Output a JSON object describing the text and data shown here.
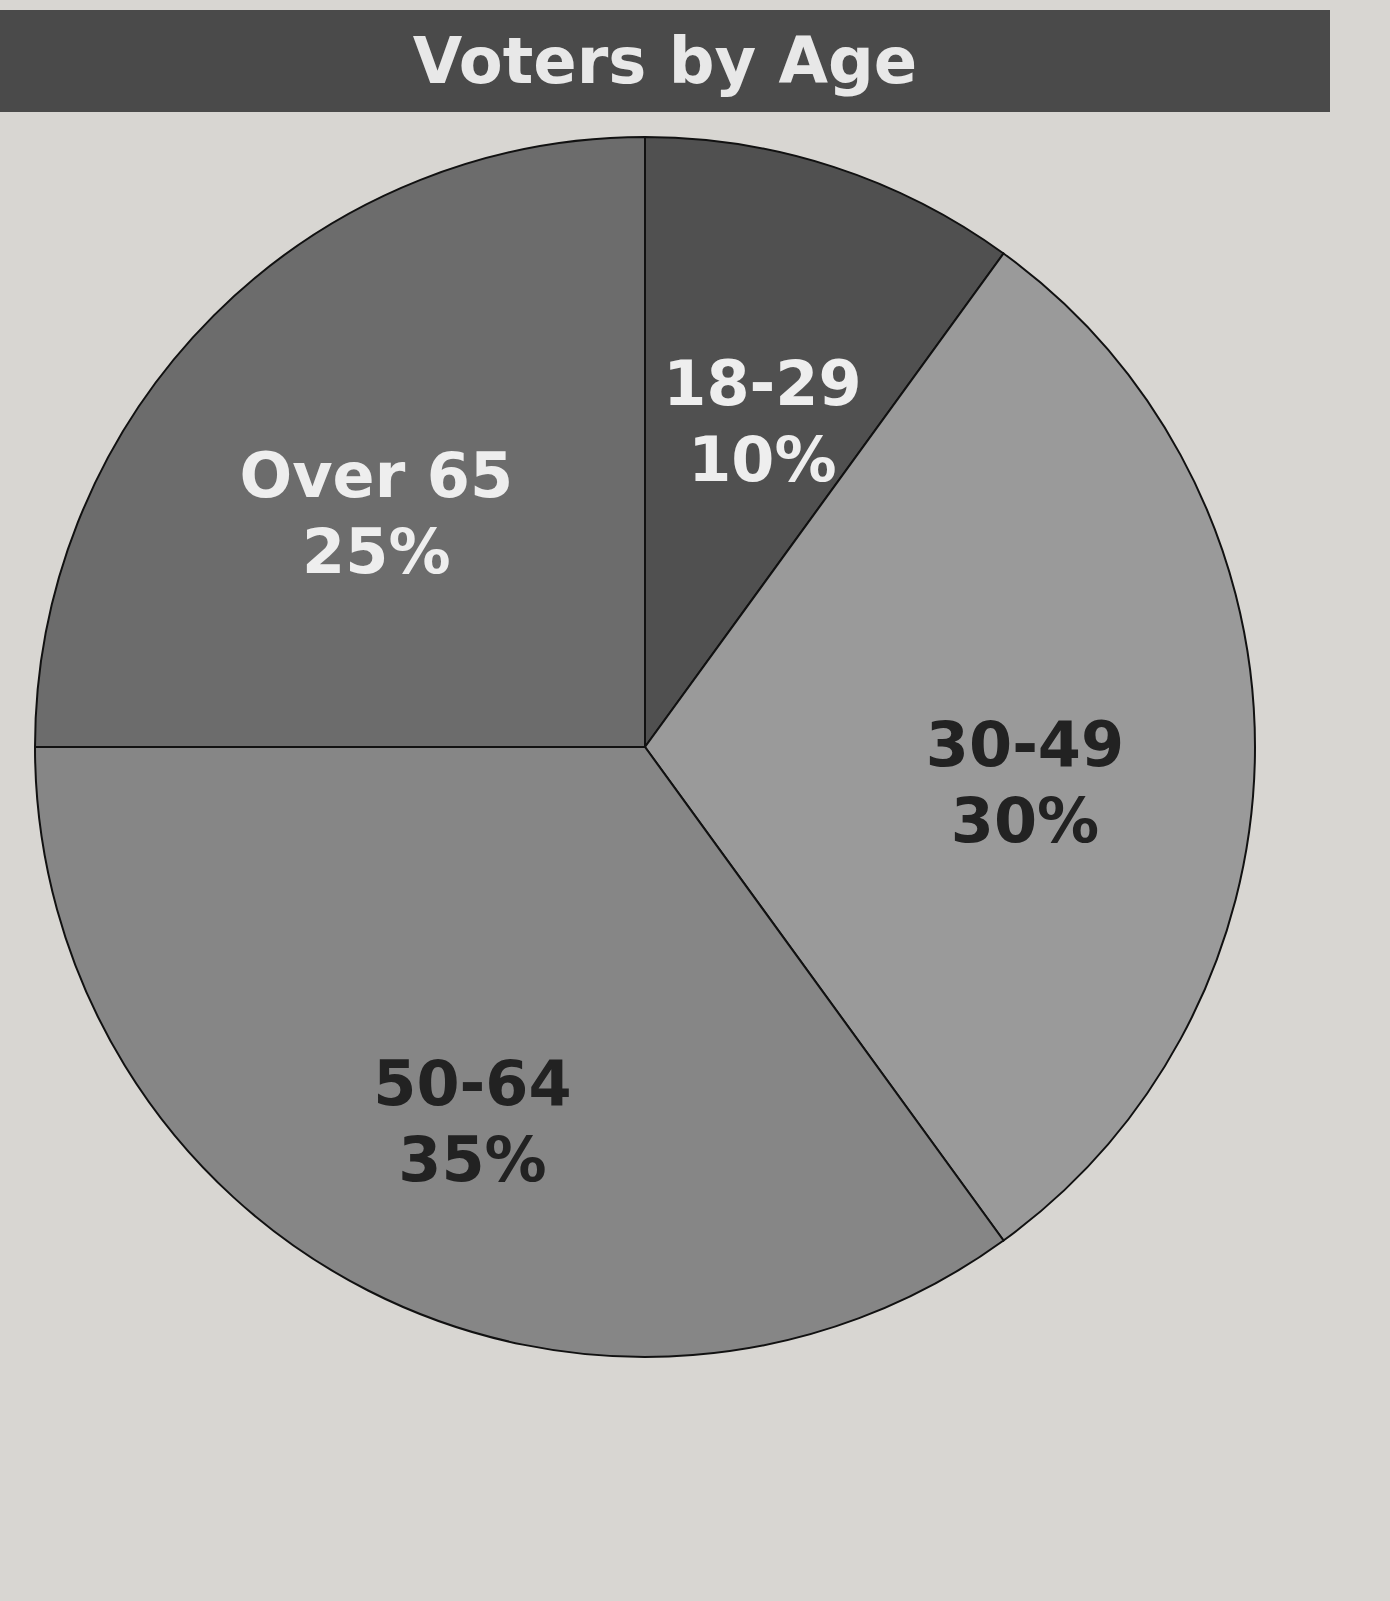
{
  "chart_data": {
    "type": "pie",
    "title": "Voters by Age",
    "categories": [
      "18-29",
      "30-49",
      "50-64",
      "Over 65"
    ],
    "values": [
      10,
      30,
      35,
      25
    ],
    "value_labels": [
      "10%",
      "30%",
      "35%",
      "25%"
    ],
    "colors": [
      "#505050",
      "#9a9a9a",
      "#868686",
      "#6c6c6c"
    ]
  }
}
